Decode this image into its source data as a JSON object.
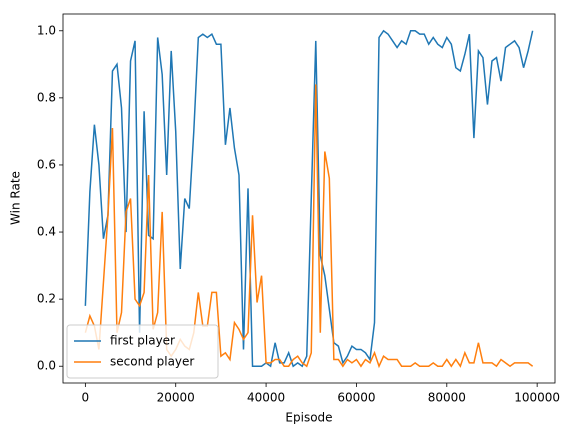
{
  "chart_data": {
    "type": "line",
    "x": [
      0,
      1000,
      2000,
      3000,
      4000,
      5000,
      6000,
      7000,
      8000,
      9000,
      10000,
      11000,
      12000,
      13000,
      14000,
      15000,
      16000,
      17000,
      18000,
      19000,
      20000,
      21000,
      22000,
      23000,
      24000,
      25000,
      26000,
      27000,
      28000,
      29000,
      30000,
      31000,
      32000,
      33000,
      34000,
      35000,
      36000,
      37000,
      38000,
      39000,
      40000,
      41000,
      42000,
      43000,
      44000,
      45000,
      46000,
      47000,
      48000,
      49000,
      50000,
      51000,
      52000,
      53000,
      54000,
      55000,
      56000,
      57000,
      58000,
      59000,
      60000,
      61000,
      62000,
      63000,
      64000,
      65000,
      66000,
      67000,
      68000,
      69000,
      70000,
      71000,
      72000,
      73000,
      74000,
      75000,
      76000,
      77000,
      78000,
      79000,
      80000,
      81000,
      82000,
      83000,
      84000,
      85000,
      86000,
      87000,
      88000,
      89000,
      90000,
      91000,
      92000,
      93000,
      94000,
      95000,
      96000,
      97000,
      98000,
      99000
    ],
    "series": [
      {
        "name": "first player",
        "color": "#1f77b4",
        "values": [
          0.18,
          0.52,
          0.72,
          0.6,
          0.38,
          0.45,
          0.88,
          0.9,
          0.77,
          0.4,
          0.91,
          0.97,
          0.1,
          0.76,
          0.39,
          0.38,
          0.98,
          0.87,
          0.57,
          0.94,
          0.7,
          0.29,
          0.5,
          0.47,
          0.7,
          0.98,
          0.99,
          0.98,
          0.99,
          0.96,
          0.96,
          0.66,
          0.77,
          0.65,
          0.57,
          0.05,
          0.53,
          0,
          0,
          0,
          0.01,
          0,
          0.07,
          0.01,
          0.01,
          0.04,
          0,
          0.01,
          0,
          0.03,
          0.5,
          0.97,
          0.33,
          0.27,
          0.17,
          0.07,
          0.06,
          0.01,
          0.03,
          0.06,
          0.05,
          0.05,
          0.04,
          0.02,
          0.13,
          0.98,
          1.0,
          0.99,
          0.97,
          0.95,
          0.97,
          0.96,
          1.0,
          1.0,
          0.99,
          0.99,
          0.96,
          0.98,
          0.96,
          0.95,
          0.98,
          0.96,
          0.89,
          0.88,
          0.93,
          0.99,
          0.68,
          0.94,
          0.92,
          0.78,
          0.91,
          0.92,
          0.85,
          0.95,
          0.96,
          0.97,
          0.95,
          0.89,
          0.94,
          1.0
        ]
      },
      {
        "name": "second player",
        "color": "#ff7f0e",
        "values": [
          0.1,
          0.15,
          0.12,
          0.05,
          0.25,
          0.45,
          0.71,
          0.1,
          0.16,
          0.46,
          0.5,
          0.2,
          0.18,
          0.22,
          0.57,
          0.11,
          0.16,
          0.46,
          0.05,
          0.03,
          0.05,
          0.08,
          0.06,
          0.05,
          0.1,
          0.22,
          0.12,
          0.12,
          0.22,
          0.22,
          0.03,
          0.04,
          0.02,
          0.13,
          0.11,
          0.08,
          0.1,
          0.45,
          0.19,
          0.27,
          0.01,
          0.01,
          0.02,
          0.02,
          0,
          0,
          0.02,
          0.03,
          0.01,
          0,
          0.04,
          0.84,
          0.1,
          0.64,
          0.56,
          0.02,
          0.02,
          0,
          0.02,
          0.01,
          0.02,
          0,
          0.02,
          0.01,
          0.04,
          0,
          0.03,
          0.02,
          0.02,
          0.02,
          0,
          0,
          0,
          0.01,
          0,
          0,
          0,
          0.01,
          0,
          0,
          0.02,
          0,
          0.02,
          0,
          0.04,
          0.01,
          0.01,
          0.07,
          0.01,
          0.01,
          0.01,
          0,
          0.02,
          0.01,
          0,
          0.01,
          0.01,
          0.01,
          0.01,
          0
        ]
      }
    ],
    "xlabel": "Episode",
    "ylabel": "Win Rate",
    "xlim": [
      -4950,
      103950
    ],
    "ylim": [
      -0.05,
      1.05
    ],
    "xticks": [
      0,
      20000,
      40000,
      60000,
      80000,
      100000
    ],
    "yticks": [
      {
        "value": 0,
        "label": "0.0"
      },
      {
        "value": 0.2,
        "label": "0.2"
      },
      {
        "value": 0.4,
        "label": "0.4"
      },
      {
        "value": 0.6,
        "label": "0.6"
      },
      {
        "value": 0.8,
        "label": "0.8"
      },
      {
        "value": 1,
        "label": "1.0"
      }
    ],
    "legend": "lower left"
  }
}
